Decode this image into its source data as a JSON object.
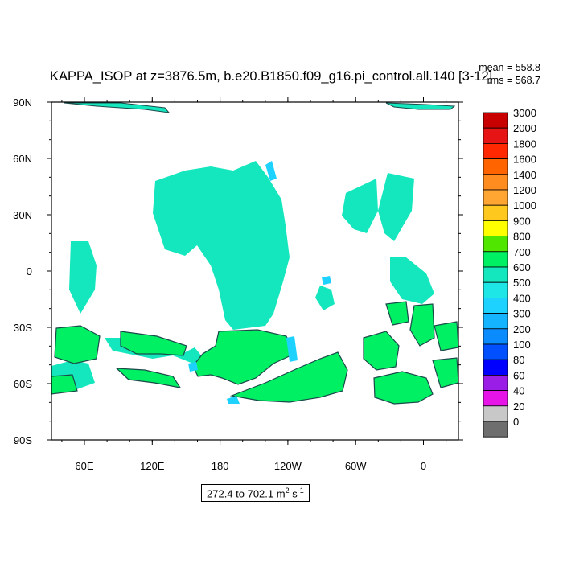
{
  "title": "KAPPA_ISOP at z=3876.5m, b.e20.B1850.f09_g16.pi_control.all.140 [3-12]",
  "stats": {
    "mean": "mean = 558.8",
    "rms": "rms = 568.7"
  },
  "map": {
    "lat_labels": [
      "90N",
      "60N",
      "30N",
      "0",
      "30S",
      "60S",
      "90S"
    ],
    "lon_labels": [
      "60E",
      "120E",
      "180",
      "120W",
      "60W",
      "0"
    ],
    "land_color": "#ffffff",
    "outline_color": "#1a4a4a"
  },
  "colorbar": {
    "levels": [
      "3000",
      "2000",
      "1800",
      "1600",
      "1400",
      "1200",
      "1000",
      "900",
      "800",
      "700",
      "600",
      "500",
      "400",
      "300",
      "200",
      "100",
      "80",
      "60",
      "40",
      "20",
      "0"
    ],
    "colors": [
      "#c80000",
      "#e61414",
      "#ff2800",
      "#ff6400",
      "#ff8c1e",
      "#ffa532",
      "#ffc81e",
      "#ffff00",
      "#50e600",
      "#00f064",
      "#14e6be",
      "#1ee6e6",
      "#1ed2ff",
      "#14b4ff",
      "#0a8cff",
      "#0050ff",
      "#0000ff",
      "#9a1ee6",
      "#e614e6",
      "#c8c8c8",
      "#6e6e6e"
    ]
  },
  "range": {
    "prefix": "272.4 to 702.1 m",
    "exp1": "2",
    "mid": " s",
    "exp2": "-1"
  }
}
